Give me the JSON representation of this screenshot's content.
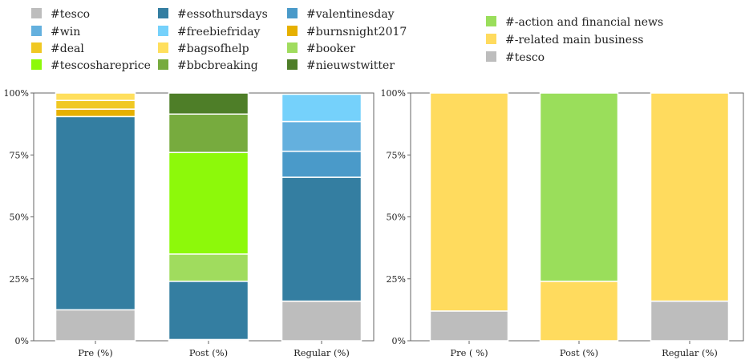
{
  "chart_data": [
    {
      "type": "bar",
      "stacked": true,
      "categories": [
        "Pre (%)",
        "Post (%)",
        "Regular (%)"
      ],
      "ylim": [
        0,
        100
      ],
      "yticks": [
        "0%",
        "25%",
        "50%",
        "75%",
        "100%"
      ],
      "grid": false,
      "legend": "top",
      "series": [
        {
          "name": "#tesco",
          "color": "#bdbdbd",
          "values": [
            12.5,
            0.5,
            16
          ]
        },
        {
          "name": "#essothursdays",
          "color": "#347ea1",
          "values": [
            78,
            23.5,
            50
          ]
        },
        {
          "name": "#valentinesday",
          "color": "#4a9ac9",
          "values": [
            0,
            0,
            10.5
          ]
        },
        {
          "name": "#win",
          "color": "#64b0de",
          "values": [
            0,
            0,
            12
          ]
        },
        {
          "name": "#freebiefriday",
          "color": "#75d1fb",
          "values": [
            0,
            0,
            11
          ]
        },
        {
          "name": "#burnsnight2017",
          "color": "#e6b000",
          "values": [
            3,
            0,
            0
          ]
        },
        {
          "name": "#deal",
          "color": "#f0c823",
          "values": [
            3.5,
            0,
            0
          ]
        },
        {
          "name": "#bagsofhelp",
          "color": "#ffdf5d",
          "values": [
            3,
            0,
            0
          ]
        },
        {
          "name": "#booker",
          "color": "#a0dc5e",
          "values": [
            0,
            11,
            0
          ]
        },
        {
          "name": "#tescoshareprice",
          "color": "#8df90a",
          "values": [
            0,
            41,
            0
          ]
        },
        {
          "name": "#bbcbreaking",
          "color": "#77ab3e",
          "values": [
            0,
            15.5,
            0
          ]
        },
        {
          "name": "#nieuwstwitter",
          "color": "#4e7e28",
          "values": [
            0,
            8.5,
            0
          ]
        }
      ],
      "legend_order": [
        "#tesco",
        "#essothursdays",
        "#valentinesday",
        "#win",
        "#freebiefriday",
        "#burnsnight2017",
        "#deal",
        "#bagsofhelp",
        "#booker",
        "#tescoshareprice",
        "#bbcbreaking",
        "#nieuwstwitter"
      ]
    },
    {
      "type": "bar",
      "stacked": true,
      "categories": [
        "Pre ( %)",
        "Post (%)",
        "Regular (%)"
      ],
      "ylim": [
        0,
        100
      ],
      "yticks": [
        "0%",
        "25%",
        "50%",
        "75%",
        "100%"
      ],
      "grid": false,
      "legend": "top",
      "series": [
        {
          "name": "#tesco",
          "color": "#bdbdbd",
          "values": [
            12,
            0,
            16
          ]
        },
        {
          "name": "#-related main business",
          "color": "#ffdb5e",
          "values": [
            88,
            24,
            84
          ]
        },
        {
          "name": "#-action and financial news",
          "color": "#9ade5b",
          "values": [
            0,
            76,
            0
          ]
        }
      ],
      "legend_order": [
        "#-action and financial news",
        "#-related main business",
        "#tesco"
      ]
    }
  ]
}
